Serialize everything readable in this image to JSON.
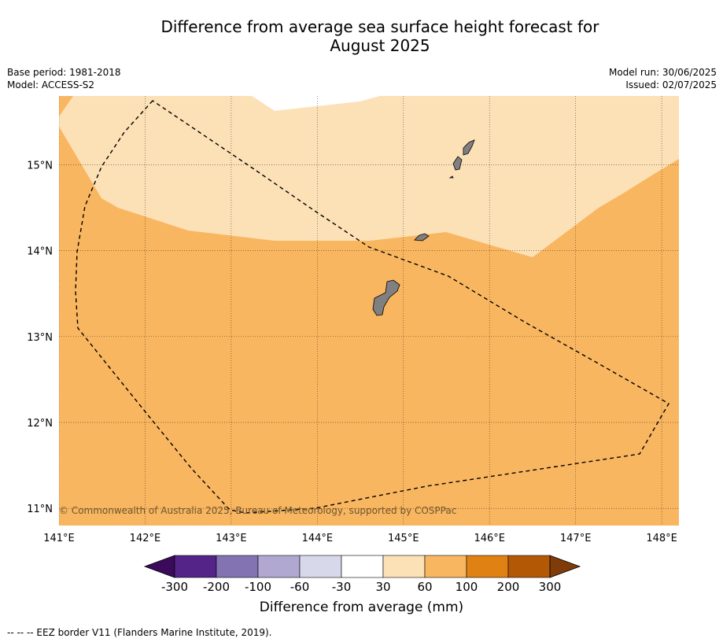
{
  "title": {
    "line1": "Difference from average sea surface height forecast for",
    "line2": "August 2025"
  },
  "meta": {
    "base_period": "Base period: 1981-2018",
    "model": "Model: ACCESS-S2",
    "model_run": "Model run: 30/06/2025",
    "issued": "Issued: 02/07/2025"
  },
  "map": {
    "lon_range": [
      141.0,
      148.2
    ],
    "lat_range": [
      10.8,
      15.8
    ],
    "lon_ticks": [
      "141°E",
      "142°E",
      "143°E",
      "144°E",
      "145°E",
      "146°E",
      "147°E",
      "148°E"
    ],
    "lat_ticks": [
      "15°N",
      "14°N",
      "13°N",
      "12°N",
      "11°N"
    ],
    "copyright": "© Commonwealth of Australia 2025, Bureau of Meteorology, supported by COSPPac",
    "colors": {
      "band_30_60": "#fce0b6",
      "band_60_100": "#f9b660",
      "land": "#808080"
    }
  },
  "colorbar": {
    "labels": [
      "-300",
      "-200",
      "-100",
      "-60",
      "-30",
      "30",
      "60",
      "100",
      "200",
      "300"
    ],
    "colors": [
      "#3b0a5a",
      "#542488",
      "#8473b2",
      "#b1a8d2",
      "#d8d8eb",
      "#ffffff",
      "#fce0b6",
      "#f9b660",
      "#e08213",
      "#b35906",
      "#7f3b08"
    ],
    "title": "Difference from average (mm)"
  },
  "footer": "-- -- -- EEZ border V11 (Flanders Marine Institute, 2019)."
}
